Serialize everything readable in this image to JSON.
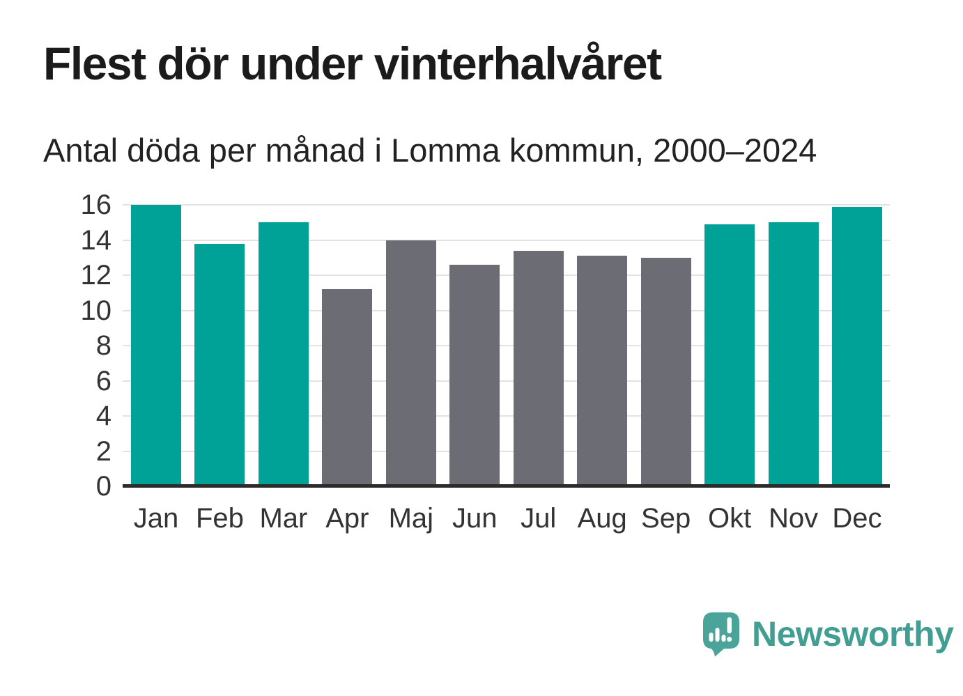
{
  "header": {
    "title": "Flest dör under vinterhalvåret",
    "subtitle": "Antal döda per månad i Lomma kommun, 2000–2024"
  },
  "chart_data": {
    "type": "bar",
    "title": "Flest dör under vinterhalvåret",
    "subtitle": "Antal döda per månad i Lomma kommun, 2000–2024",
    "categories": [
      "Jan",
      "Feb",
      "Mar",
      "Apr",
      "Maj",
      "Jun",
      "Jul",
      "Aug",
      "Sep",
      "Okt",
      "Nov",
      "Dec"
    ],
    "values": [
      16.0,
      13.8,
      15.0,
      11.2,
      14.0,
      12.6,
      13.4,
      13.1,
      13.0,
      14.9,
      15.0,
      15.9
    ],
    "bar_colors": [
      "#00a298",
      "#00a298",
      "#00a298",
      "#6c6c74",
      "#6c6c74",
      "#6c6c74",
      "#6c6c74",
      "#6c6c74",
      "#6c6c74",
      "#00a298",
      "#00a298",
      "#00a298"
    ],
    "colors": {
      "winter_months": "#00a298",
      "summer_months": "#6c6c74",
      "gridline": "#e2e2e2",
      "axis_line": "#2b2b2b"
    },
    "xlabel": "",
    "ylabel": "",
    "ylim": [
      0,
      16
    ],
    "yticks": [
      0,
      2,
      4,
      6,
      8,
      10,
      12,
      14,
      16
    ],
    "grid": "horizontal",
    "legend": "none"
  },
  "footer": {
    "brand": "Newsworthy",
    "brand_color": "#429d93",
    "logo_icon": "bar-chart-speech-bubble"
  }
}
